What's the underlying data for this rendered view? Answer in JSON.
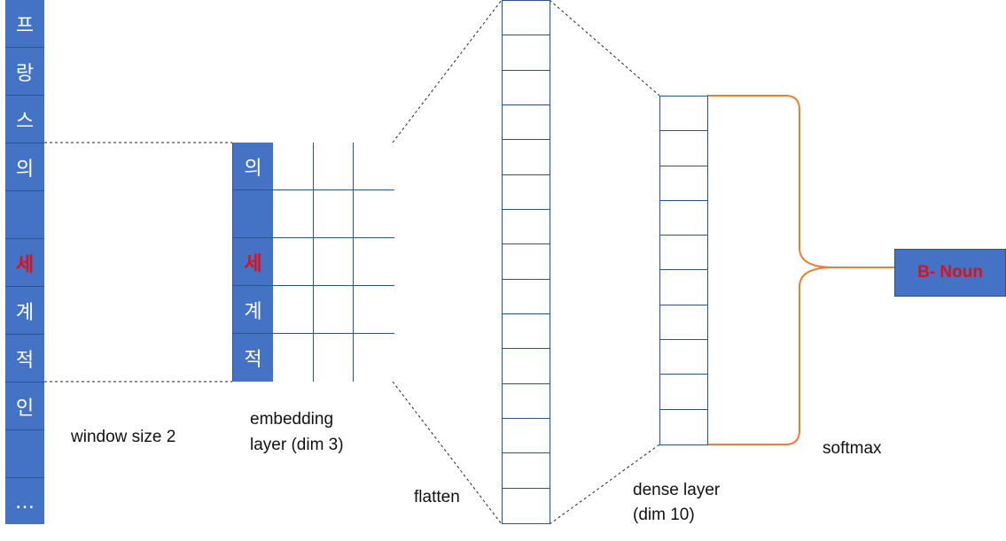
{
  "input_column": {
    "tokens": [
      {
        "text": "프",
        "highlight": false
      },
      {
        "text": "랑",
        "highlight": false
      },
      {
        "text": "스",
        "highlight": false
      },
      {
        "text": "의",
        "highlight": false
      },
      {
        "text": "",
        "highlight": false
      },
      {
        "text": "세",
        "highlight": true
      },
      {
        "text": "계",
        "highlight": false
      },
      {
        "text": "적",
        "highlight": false
      },
      {
        "text": "인",
        "highlight": false
      },
      {
        "text": "",
        "highlight": false
      },
      {
        "text": "…",
        "highlight": false
      }
    ]
  },
  "embedding_layer": {
    "tokens": [
      {
        "text": "의",
        "highlight": false
      },
      {
        "text": "",
        "highlight": false
      },
      {
        "text": "세",
        "highlight": true
      },
      {
        "text": "계",
        "highlight": false
      },
      {
        "text": "적",
        "highlight": false
      }
    ],
    "dim": 3
  },
  "flatten_cells": 15,
  "dense_cells": 10,
  "labels": {
    "window": "window size  2",
    "embedding_line1": "embedding",
    "embedding_line2": "layer (dim 3)",
    "flatten": "flatten",
    "dense_line1": "dense layer",
    "dense_line2": "(dim 10)",
    "softmax": "softmax"
  },
  "output": {
    "label": "B- Noun"
  },
  "colors": {
    "cell_fill": "#4472C4",
    "cell_border": "#2F528F",
    "highlight_text": "#E0101A",
    "bracket": "#ED7D31"
  }
}
